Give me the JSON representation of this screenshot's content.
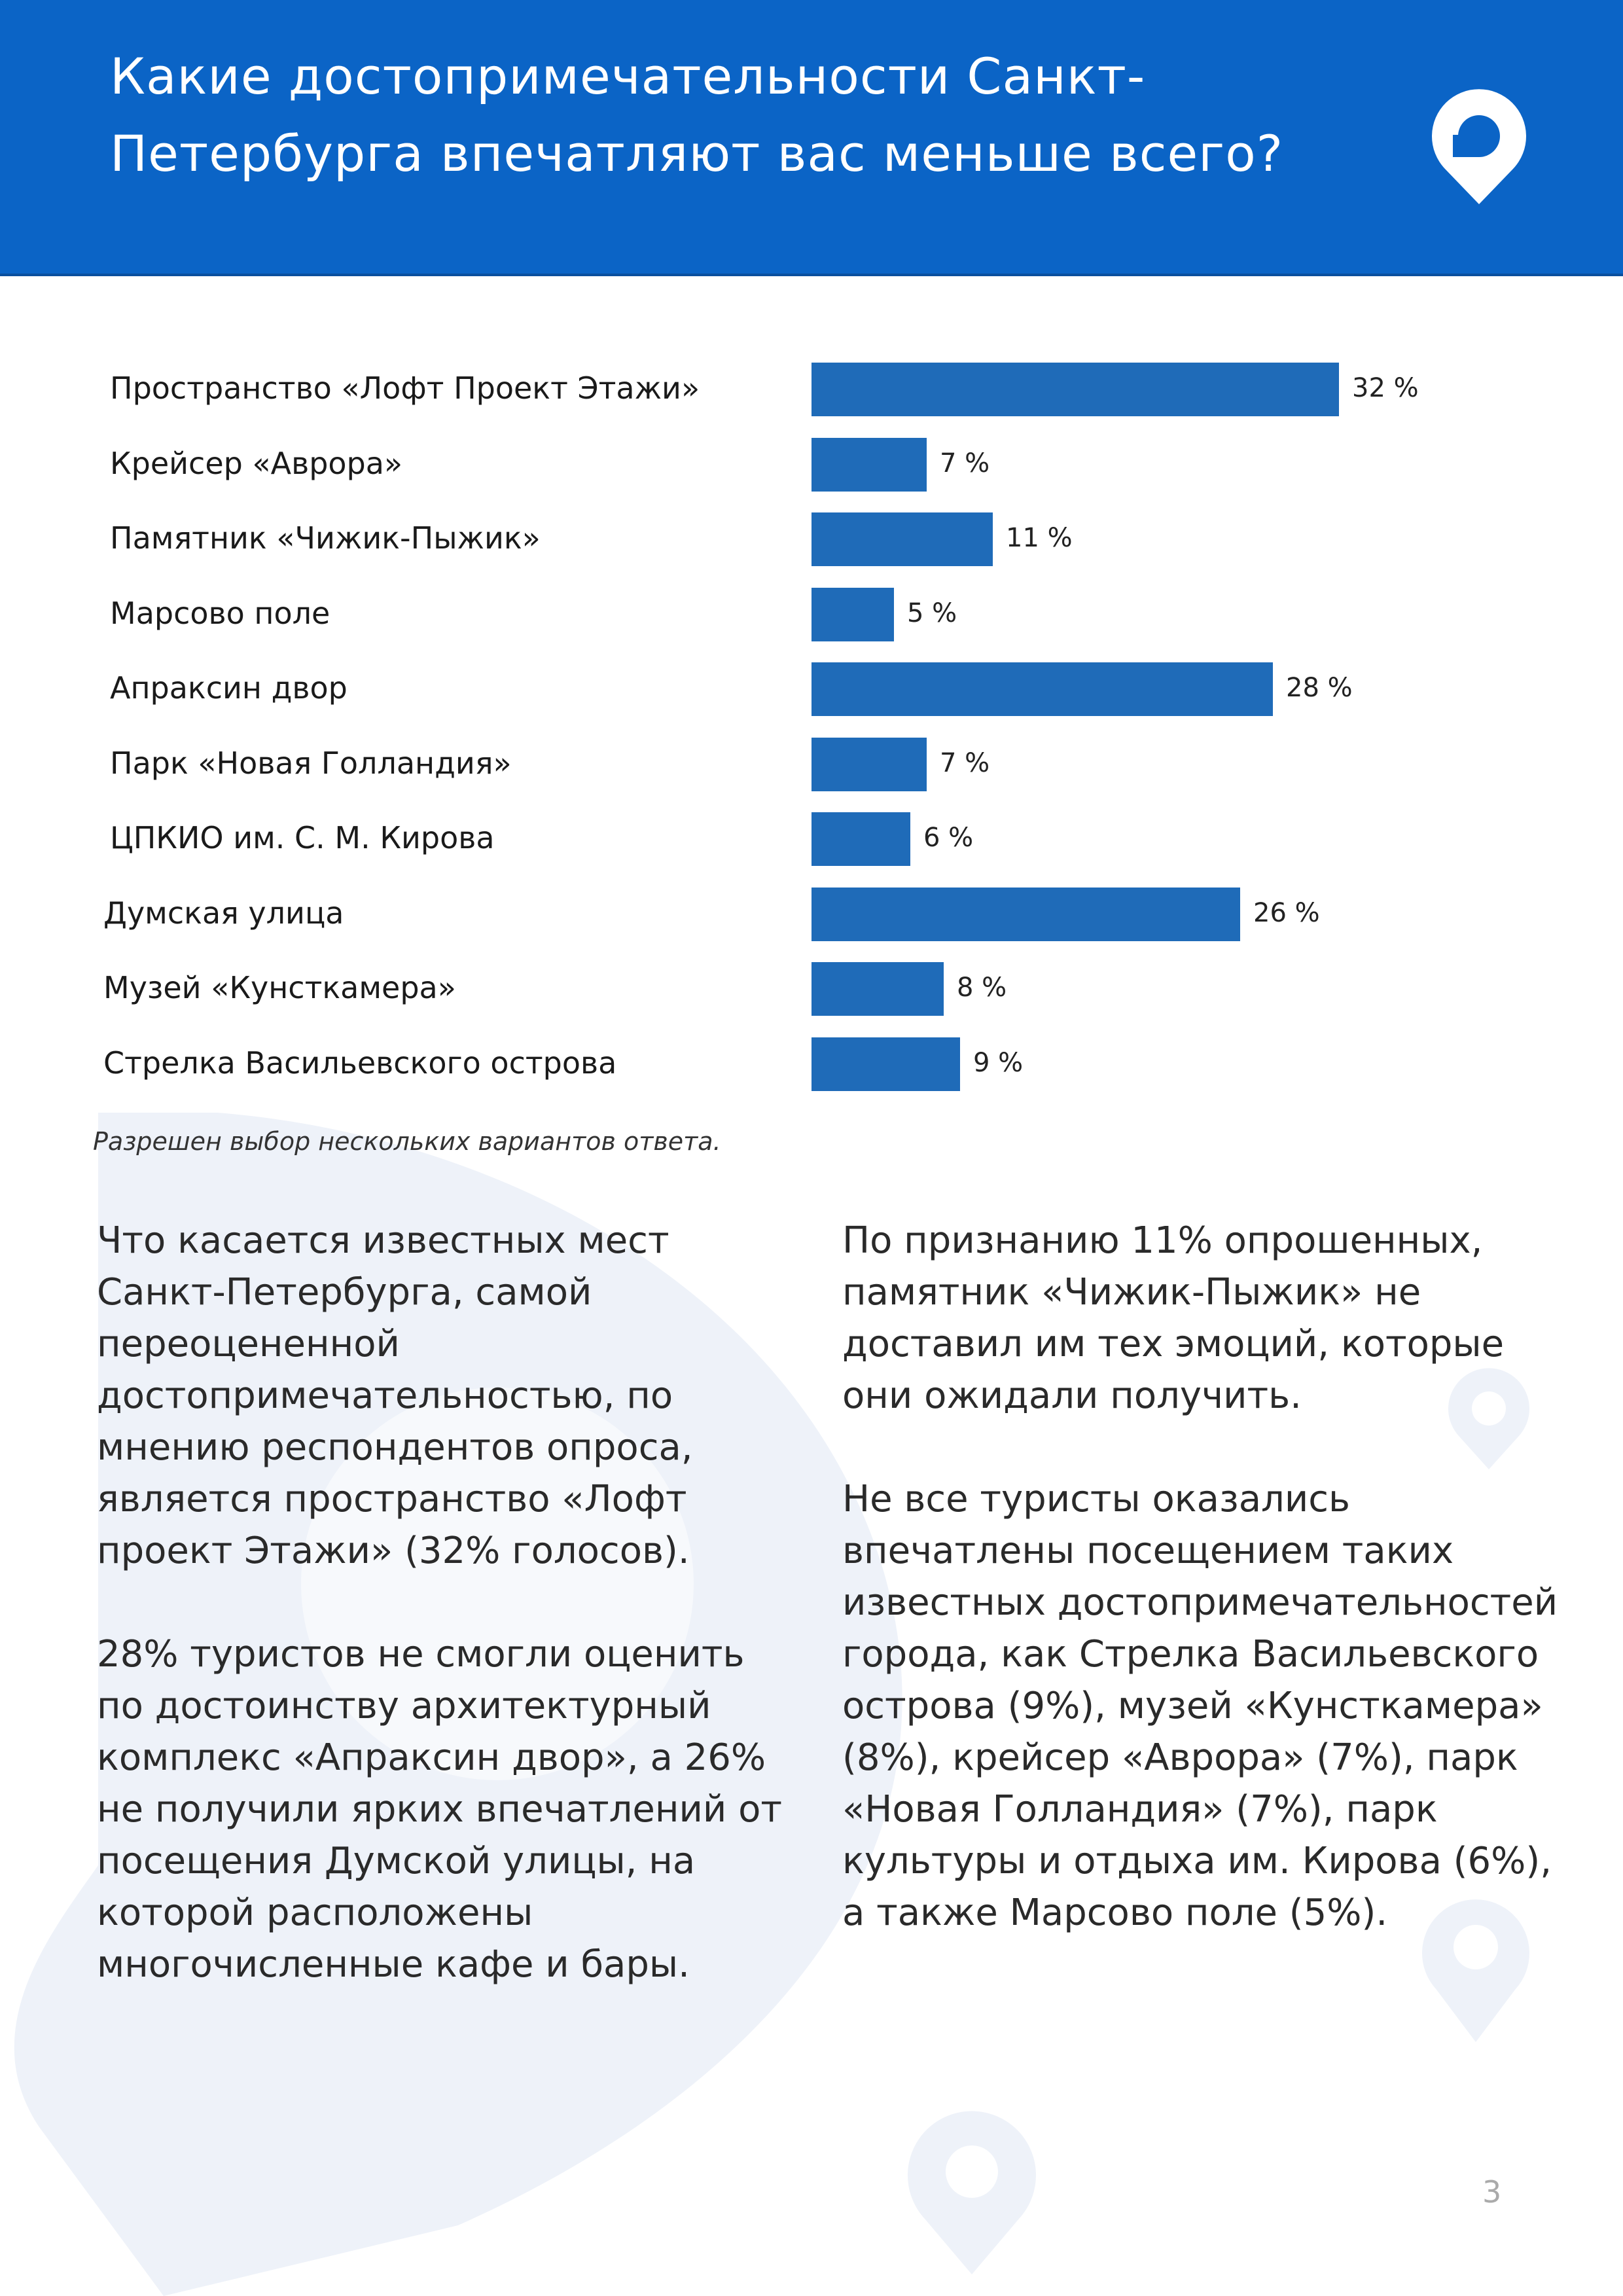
{
  "header": {
    "title_line1": "Какие достопримечательности Санкт-",
    "title_line2": "Петербурга впечатляют вас меньше всего?"
  },
  "colors": {
    "header_bg": "#0b64c6",
    "bar": "#1f6bb8",
    "watermark": "#eef2f9"
  },
  "icons": {
    "logo": "location-pin-logo-icon"
  },
  "chart_data": {
    "type": "bar",
    "orientation": "horizontal",
    "categories": [
      "Пространство «Лофт Проект Этажи»",
      "Крейсер «Аврора»",
      "Памятник «Чижик-Пыжик»",
      "Марсово поле",
      "Апраксин двор",
      "Парк «Новая Голландия»",
      "ЦПКИО им. С. М. Кирова",
      "Думская улица",
      "Музей «Кунсткамера»",
      "Стрелка Васильевского острова"
    ],
    "values": [
      32,
      7,
      11,
      5,
      28,
      7,
      6,
      26,
      8,
      9
    ],
    "value_labels": [
      "32 %",
      "7 %",
      "11 %",
      "5 %",
      "28 %",
      "7 %",
      "6 %",
      "26 %",
      "8 %",
      "9 %"
    ],
    "unit": "%",
    "xlim": [
      0,
      32
    ],
    "grid": false,
    "title": "",
    "xlabel": "",
    "ylabel": ""
  },
  "note": "Разрешен выбор нескольких вариантов ответа.",
  "left_column": {
    "p1": "Что касается известных мест Санкт-Петербурга, самой переоцененной достопримечательностью, по мнению респондентов опроса, является пространство «Лофт проект Этажи» (32% голосов).",
    "p2": "28% туристов не смогли оценить по достоинству архитектурный комплекс «Апраксин двор», а 26% не получили ярких впечатлений от посещения Думской улицы, на которой расположены многочисленные кафе и бары."
  },
  "right_column": {
    "p1": "По признанию 11% опрошенных, памятник «Чижик-Пыжик» не доставил им тех эмоций, которые они ожидали получить.",
    "p2": "Не все туристы оказались впечатлены посещением таких известных достопримечательностей города, как Стрелка Васильевского острова (9%), музей «Кунсткамера» (8%), крейсер «Аврора» (7%), парк «Новая Голландия» (7%), парк культуры и отдыха им. Кирова (6%), а также Марсово поле (5%)."
  },
  "page_number": "3"
}
